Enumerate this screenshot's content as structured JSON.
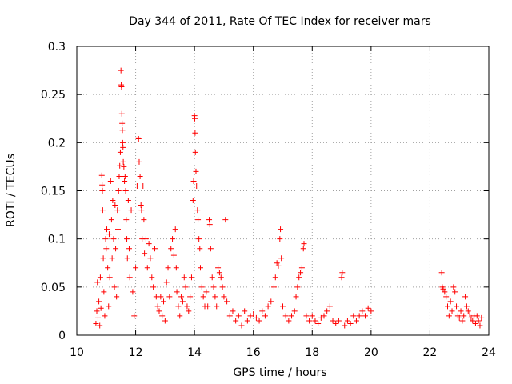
{
  "chart_data": {
    "type": "scatter",
    "title": "Day 344 of 2011, Rate Of TEC Index for receiver mars",
    "xlabel": "GPS time / hours",
    "ylabel": "ROTI / TECUs",
    "xlim": [
      10,
      24
    ],
    "ylim": [
      0,
      0.3
    ],
    "xticks": [
      10,
      12,
      14,
      16,
      18,
      20,
      22,
      24
    ],
    "yticks": [
      0,
      0.05,
      0.1,
      0.15,
      0.2,
      0.25,
      0.3
    ],
    "xtick_labels": [
      "10",
      "12",
      "14",
      "16",
      "18",
      "20",
      "22",
      "24"
    ],
    "ytick_labels": [
      "0",
      "0.05",
      "0.1",
      "0.15",
      "0.2",
      "0.25",
      "0.3"
    ],
    "grid": true,
    "marker": "+",
    "color": "#ff0000",
    "series": [
      {
        "name": "ROTI",
        "points": [
          [
            10.65,
            0.012
          ],
          [
            10.68,
            0.025
          ],
          [
            10.7,
            0.055
          ],
          [
            10.72,
            0.018
          ],
          [
            10.75,
            0.035
          ],
          [
            10.78,
            0.01
          ],
          [
            10.8,
            0.06
          ],
          [
            10.82,
            0.028
          ],
          [
            10.85,
            0.166
          ],
          [
            10.86,
            0.156
          ],
          [
            10.87,
            0.15
          ],
          [
            10.88,
            0.13
          ],
          [
            10.9,
            0.08
          ],
          [
            10.92,
            0.045
          ],
          [
            10.95,
            0.02
          ],
          [
            10.98,
            0.1
          ],
          [
            11.0,
            0.09
          ],
          [
            11.02,
            0.11
          ],
          [
            11.05,
            0.07
          ],
          [
            11.08,
            0.03
          ],
          [
            11.1,
            0.105
          ],
          [
            11.12,
            0.06
          ],
          [
            11.15,
            0.16
          ],
          [
            11.18,
            0.12
          ],
          [
            11.2,
            0.08
          ],
          [
            11.22,
            0.14
          ],
          [
            11.25,
            0.1
          ],
          [
            11.28,
            0.05
          ],
          [
            11.3,
            0.135
          ],
          [
            11.32,
            0.09
          ],
          [
            11.35,
            0.04
          ],
          [
            11.38,
            0.13
          ],
          [
            11.4,
            0.11
          ],
          [
            11.42,
            0.15
          ],
          [
            11.44,
            0.165
          ],
          [
            11.46,
            0.176
          ],
          [
            11.48,
            0.19
          ],
          [
            11.5,
            0.275
          ],
          [
            11.51,
            0.26
          ],
          [
            11.52,
            0.258
          ],
          [
            11.53,
            0.23
          ],
          [
            11.54,
            0.22
          ],
          [
            11.55,
            0.213
          ],
          [
            11.56,
            0.2
          ],
          [
            11.57,
            0.195
          ],
          [
            11.58,
            0.18
          ],
          [
            11.6,
            0.175
          ],
          [
            11.62,
            0.16
          ],
          [
            11.64,
            0.165
          ],
          [
            11.66,
            0.15
          ],
          [
            11.68,
            0.12
          ],
          [
            11.7,
            0.1
          ],
          [
            11.72,
            0.08
          ],
          [
            11.75,
            0.14
          ],
          [
            11.78,
            0.09
          ],
          [
            11.8,
            0.06
          ],
          [
            11.85,
            0.13
          ],
          [
            11.9,
            0.045
          ],
          [
            11.95,
            0.02
          ],
          [
            12.0,
            0.07
          ],
          [
            12.05,
            0.155
          ],
          [
            12.08,
            0.205
          ],
          [
            12.1,
            0.204
          ],
          [
            12.12,
            0.18
          ],
          [
            12.15,
            0.165
          ],
          [
            12.18,
            0.135
          ],
          [
            12.2,
            0.13
          ],
          [
            12.22,
            0.1
          ],
          [
            12.25,
            0.155
          ],
          [
            12.28,
            0.12
          ],
          [
            12.3,
            0.085
          ],
          [
            12.35,
            0.1
          ],
          [
            12.4,
            0.07
          ],
          [
            12.45,
            0.095
          ],
          [
            12.5,
            0.08
          ],
          [
            12.55,
            0.06
          ],
          [
            12.6,
            0.05
          ],
          [
            12.65,
            0.09
          ],
          [
            12.7,
            0.04
          ],
          [
            12.75,
            0.03
          ],
          [
            12.8,
            0.025
          ],
          [
            12.85,
            0.04
          ],
          [
            12.9,
            0.02
          ],
          [
            12.95,
            0.035
          ],
          [
            13.0,
            0.015
          ],
          [
            13.05,
            0.055
          ],
          [
            13.1,
            0.07
          ],
          [
            13.15,
            0.04
          ],
          [
            13.2,
            0.09
          ],
          [
            13.25,
            0.1
          ],
          [
            13.3,
            0.083
          ],
          [
            13.35,
            0.11
          ],
          [
            13.38,
            0.07
          ],
          [
            13.4,
            0.045
          ],
          [
            13.45,
            0.03
          ],
          [
            13.5,
            0.02
          ],
          [
            13.55,
            0.04
          ],
          [
            13.6,
            0.035
          ],
          [
            13.65,
            0.06
          ],
          [
            13.7,
            0.05
          ],
          [
            13.75,
            0.03
          ],
          [
            13.8,
            0.025
          ],
          [
            13.85,
            0.04
          ],
          [
            13.9,
            0.06
          ],
          [
            13.95,
            0.14
          ],
          [
            13.97,
            0.16
          ],
          [
            14.0,
            0.228
          ],
          [
            14.01,
            0.225
          ],
          [
            14.02,
            0.21
          ],
          [
            14.03,
            0.19
          ],
          [
            14.05,
            0.17
          ],
          [
            14.07,
            0.155
          ],
          [
            14.1,
            0.13
          ],
          [
            14.12,
            0.12
          ],
          [
            14.15,
            0.1
          ],
          [
            14.18,
            0.09
          ],
          [
            14.2,
            0.07
          ],
          [
            14.25,
            0.05
          ],
          [
            14.3,
            0.04
          ],
          [
            14.35,
            0.03
          ],
          [
            14.4,
            0.045
          ],
          [
            14.45,
            0.03
          ],
          [
            14.5,
            0.12
          ],
          [
            14.52,
            0.115
          ],
          [
            14.55,
            0.09
          ],
          [
            14.6,
            0.06
          ],
          [
            14.65,
            0.05
          ],
          [
            14.7,
            0.04
          ],
          [
            14.75,
            0.03
          ],
          [
            14.8,
            0.07
          ],
          [
            14.85,
            0.065
          ],
          [
            14.9,
            0.06
          ],
          [
            14.95,
            0.05
          ],
          [
            15.0,
            0.04
          ],
          [
            15.05,
            0.12
          ],
          [
            15.1,
            0.035
          ],
          [
            15.2,
            0.02
          ],
          [
            15.3,
            0.025
          ],
          [
            15.4,
            0.015
          ],
          [
            15.5,
            0.02
          ],
          [
            15.6,
            0.01
          ],
          [
            15.7,
            0.025
          ],
          [
            15.8,
            0.015
          ],
          [
            15.9,
            0.02
          ],
          [
            16.0,
            0.022
          ],
          [
            16.1,
            0.018
          ],
          [
            16.2,
            0.015
          ],
          [
            16.3,
            0.025
          ],
          [
            16.4,
            0.02
          ],
          [
            16.5,
            0.03
          ],
          [
            16.6,
            0.035
          ],
          [
            16.7,
            0.05
          ],
          [
            16.75,
            0.06
          ],
          [
            16.8,
            0.075
          ],
          [
            16.85,
            0.072
          ],
          [
            16.9,
            0.1
          ],
          [
            16.92,
            0.11
          ],
          [
            16.95,
            0.08
          ],
          [
            17.0,
            0.03
          ],
          [
            17.1,
            0.02
          ],
          [
            17.2,
            0.015
          ],
          [
            17.3,
            0.02
          ],
          [
            17.4,
            0.025
          ],
          [
            17.45,
            0.04
          ],
          [
            17.5,
            0.05
          ],
          [
            17.55,
            0.06
          ],
          [
            17.6,
            0.065
          ],
          [
            17.65,
            0.07
          ],
          [
            17.7,
            0.09
          ],
          [
            17.72,
            0.095
          ],
          [
            17.8,
            0.02
          ],
          [
            17.9,
            0.015
          ],
          [
            18.0,
            0.02
          ],
          [
            18.1,
            0.015
          ],
          [
            18.2,
            0.012
          ],
          [
            18.3,
            0.018
          ],
          [
            18.4,
            0.02
          ],
          [
            18.5,
            0.025
          ],
          [
            18.6,
            0.03
          ],
          [
            18.7,
            0.015
          ],
          [
            18.8,
            0.012
          ],
          [
            18.9,
            0.015
          ],
          [
            19.0,
            0.06
          ],
          [
            19.02,
            0.065
          ],
          [
            19.1,
            0.01
          ],
          [
            19.2,
            0.015
          ],
          [
            19.3,
            0.012
          ],
          [
            19.4,
            0.02
          ],
          [
            19.5,
            0.015
          ],
          [
            19.6,
            0.02
          ],
          [
            19.7,
            0.025
          ],
          [
            19.8,
            0.02
          ],
          [
            19.9,
            0.028
          ],
          [
            20.0,
            0.025
          ],
          [
            22.4,
            0.065
          ],
          [
            22.42,
            0.05
          ],
          [
            22.45,
            0.048
          ],
          [
            22.5,
            0.045
          ],
          [
            22.55,
            0.04
          ],
          [
            22.6,
            0.03
          ],
          [
            22.65,
            0.02
          ],
          [
            22.7,
            0.035
          ],
          [
            22.75,
            0.025
          ],
          [
            22.8,
            0.05
          ],
          [
            22.85,
            0.045
          ],
          [
            22.9,
            0.03
          ],
          [
            22.95,
            0.02
          ],
          [
            23.0,
            0.018
          ],
          [
            23.05,
            0.025
          ],
          [
            23.1,
            0.015
          ],
          [
            23.15,
            0.02
          ],
          [
            23.2,
            0.04
          ],
          [
            23.25,
            0.03
          ],
          [
            23.3,
            0.025
          ],
          [
            23.35,
            0.022
          ],
          [
            23.4,
            0.018
          ],
          [
            23.45,
            0.015
          ],
          [
            23.5,
            0.02
          ],
          [
            23.55,
            0.012
          ],
          [
            23.6,
            0.02
          ],
          [
            23.65,
            0.015
          ],
          [
            23.7,
            0.01
          ],
          [
            23.75,
            0.018
          ]
        ]
      }
    ]
  }
}
